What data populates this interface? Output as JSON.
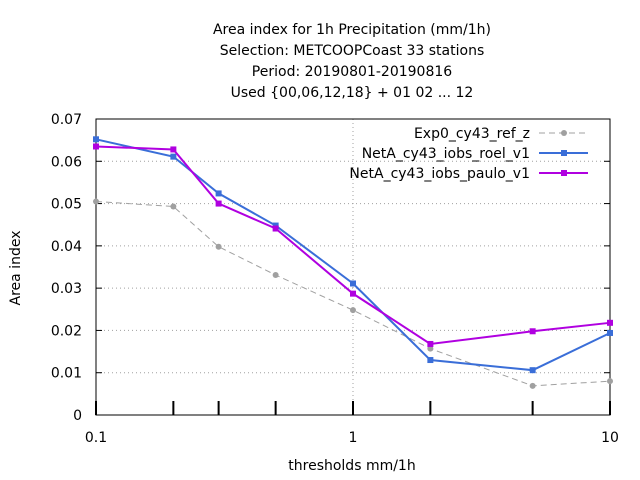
{
  "chart_data": {
    "type": "line",
    "title_lines": [
      "Area index  for 1h Precipitation (mm/1h)",
      "Selection: METCOOPCoast     33 stations",
      "Period: 20190801-20190816",
      "Used {00,06,12,18} + 01 02 ... 12"
    ],
    "xlabel": "thresholds mm/1h",
    "ylabel": "Area index",
    "x_scale": "log",
    "xlim": [
      0.1,
      10
    ],
    "ylim": [
      0,
      0.07
    ],
    "x_ticks": [
      {
        "value": 0.1,
        "label": "0.1"
      },
      {
        "value": 1,
        "label": "1"
      },
      {
        "value": 10,
        "label": "10"
      }
    ],
    "x_minor_ticks": [
      0.2,
      0.3,
      0.5,
      2,
      5
    ],
    "y_ticks": [
      {
        "value": 0,
        "label": "0"
      },
      {
        "value": 0.01,
        "label": "0.01"
      },
      {
        "value": 0.02,
        "label": "0.02"
      },
      {
        "value": 0.03,
        "label": "0.03"
      },
      {
        "value": 0.04,
        "label": "0.04"
      },
      {
        "value": 0.05,
        "label": "0.05"
      },
      {
        "value": 0.06,
        "label": "0.06"
      },
      {
        "value": 0.07,
        "label": "0.07"
      }
    ],
    "grid": true,
    "legend_position": "top-right",
    "x": [
      0.1,
      0.2,
      0.3,
      0.5,
      1,
      2,
      5,
      10
    ],
    "series": [
      {
        "name": "Exp0_cy43_ref_z",
        "color": "#a0a0a0",
        "dash": true,
        "values": [
          0.0505,
          0.0493,
          0.0398,
          0.0331,
          0.0248,
          0.0157,
          0.0069,
          0.008
        ]
      },
      {
        "name": "NetA_cy43_iobs_roel_v1",
        "color": "#3a6ed8",
        "dash": false,
        "values": [
          0.0652,
          0.0611,
          0.0524,
          0.0448,
          0.0311,
          0.013,
          0.0106,
          0.0194
        ]
      },
      {
        "name": "NetA_cy43_iobs_paulo_v1",
        "color": "#b000e0",
        "dash": false,
        "values": [
          0.0635,
          0.0628,
          0.05,
          0.0441,
          0.0287,
          0.0168,
          0.0198,
          0.0218
        ]
      }
    ]
  }
}
